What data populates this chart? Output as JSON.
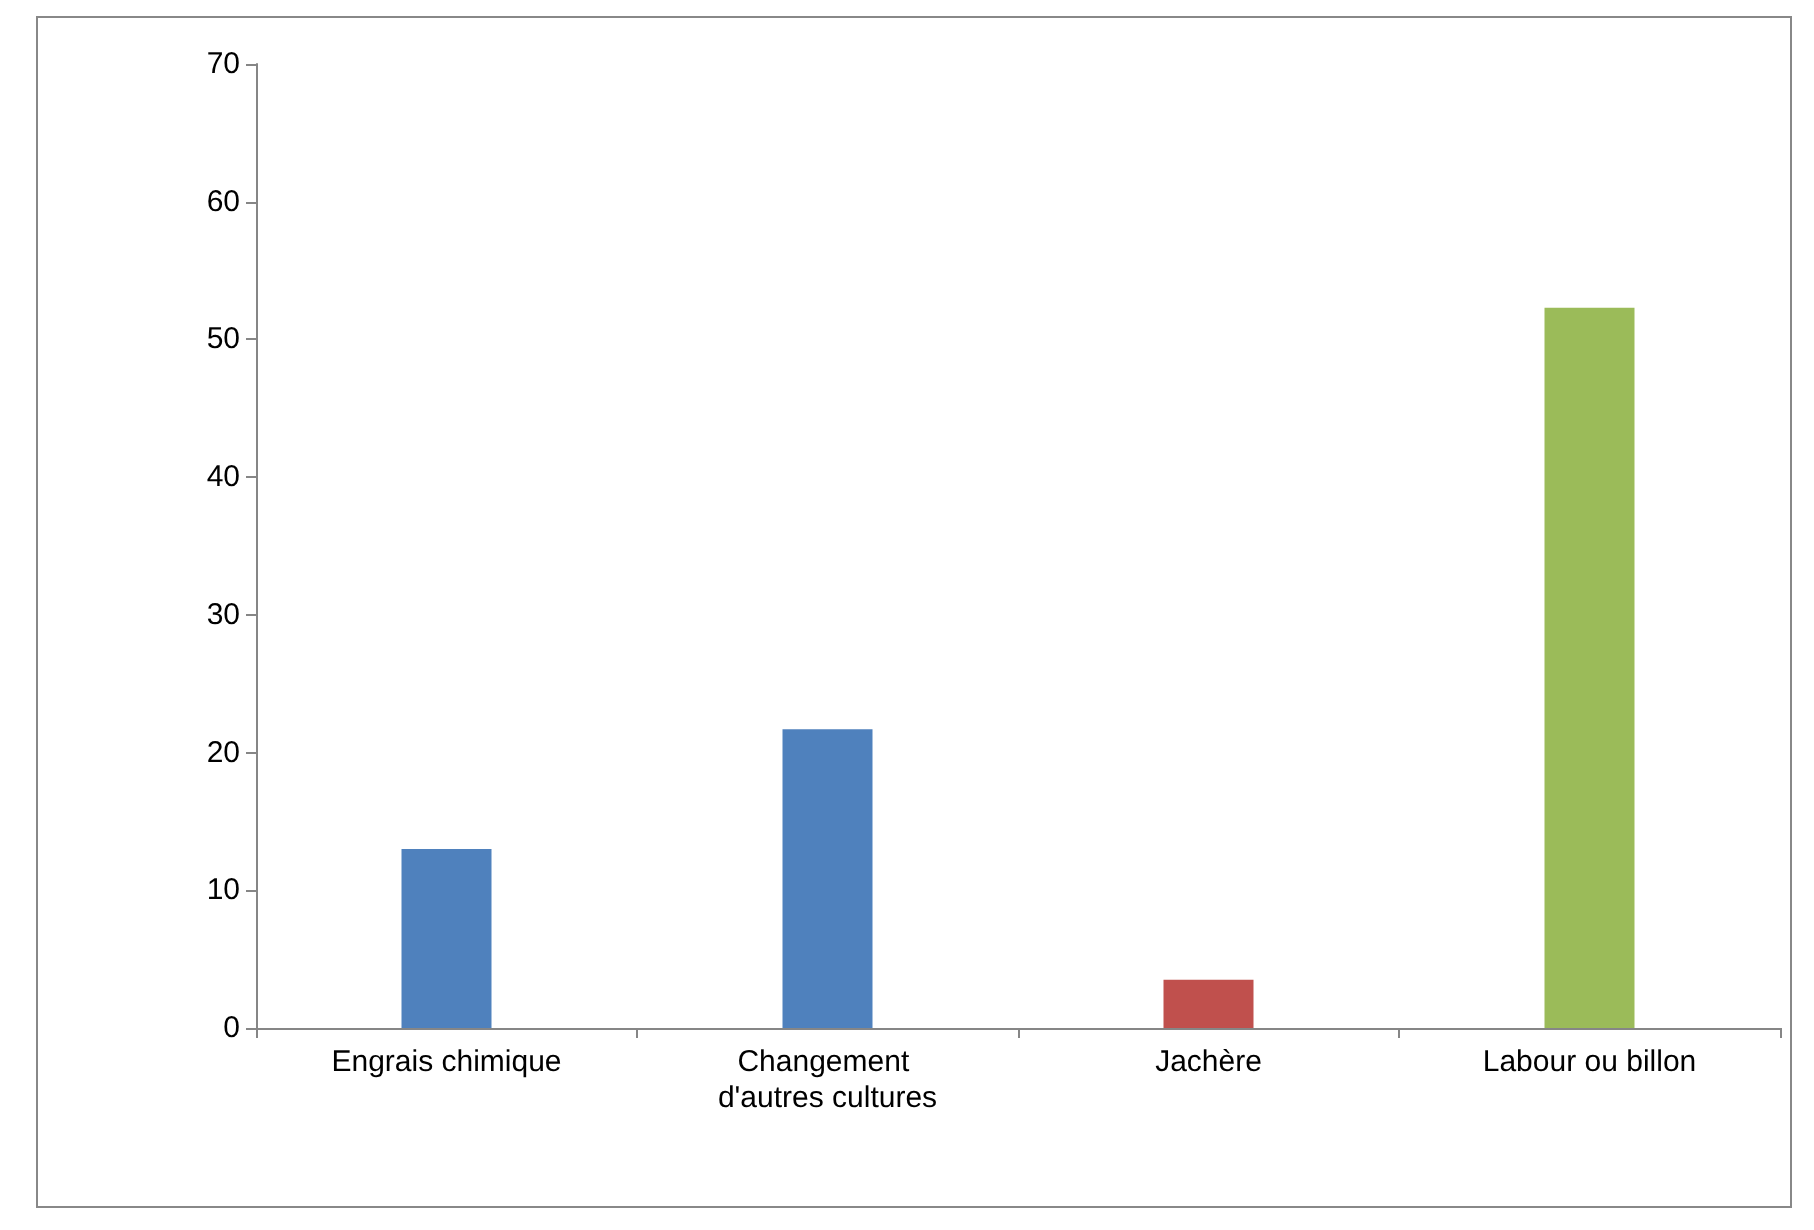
{
  "chart_data": {
    "type": "bar",
    "categories": [
      "Engrais chimique",
      "Changement d'autres cultures",
      "Jachère",
      "Labour ou billon"
    ],
    "values": [
      13,
      21.7,
      3.5,
      52.3
    ],
    "colors": [
      "#4f81bd",
      "#4f81bd",
      "#c0504d",
      "#9bbb59"
    ],
    "ylim": [
      0,
      70
    ],
    "yticks": [
      0,
      10,
      20,
      30,
      40,
      50,
      60,
      70
    ],
    "grid": false
  }
}
